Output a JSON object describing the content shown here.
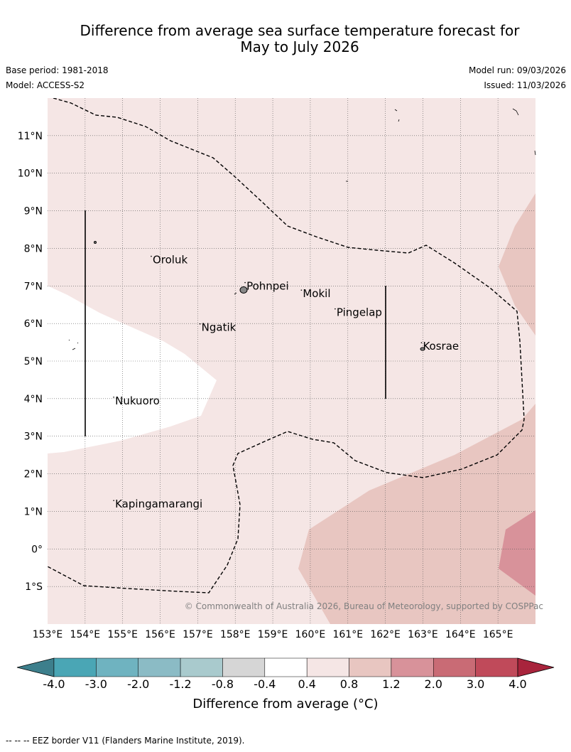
{
  "title_line1": "Difference from average sea surface temperature forecast for",
  "title_line2": "May to July 2026",
  "base_period": "Base period: 1981-2018",
  "model": "Model: ACCESS-S2",
  "model_run": "Model run: 09/03/2026",
  "issued": "Issued: 11/03/2026",
  "copyright": "© Commonwealth of Australia 2026, Bureau of Meteorology, supported by COSPPac",
  "lon_labels": [
    "153°E",
    "154°E",
    "155°E",
    "156°E",
    "157°E",
    "158°E",
    "159°E",
    "160°E",
    "161°E",
    "162°E",
    "163°E",
    "164°E",
    "165°E"
  ],
  "lat_labels": [
    "11°N",
    "10°N",
    "9°N",
    "8°N",
    "7°N",
    "6°N",
    "5°N",
    "4°N",
    "3°N",
    "2°N",
    "1°N",
    "0°",
    "1°S"
  ],
  "places": [
    {
      "name": "Oroluk",
      "lon": 155.8,
      "lat": 7.6
    },
    {
      "name": "Pohnpei",
      "lon": 158.3,
      "lat": 6.9
    },
    {
      "name": "Mokil",
      "lon": 159.8,
      "lat": 6.7
    },
    {
      "name": "Pingelap",
      "lon": 160.7,
      "lat": 6.2
    },
    {
      "name": "Ngatik",
      "lon": 157.1,
      "lat": 5.8
    },
    {
      "name": "Kosrae",
      "lon": 163.0,
      "lat": 5.3
    },
    {
      "name": "Nukuoro",
      "lon": 154.8,
      "lat": 3.85
    },
    {
      "name": "Kapingamarangi",
      "lon": 154.8,
      "lat": 1.1
    }
  ],
  "colorbar": {
    "ticks": [
      "-4.0",
      "-3.0",
      "-2.0",
      "-1.2",
      "-0.8",
      "-0.4",
      "0.4",
      "0.8",
      "1.2",
      "2.0",
      "3.0",
      "4.0"
    ],
    "colors": [
      "#3d7f8c",
      "#4aa6b5",
      "#6fb3c0",
      "#8bbbc5",
      "#a9cacd",
      "#d6d6d6",
      "#ffffff",
      "#f5e6e5",
      "#e8c6c1",
      "#d8929a",
      "#c96b75",
      "#c04a5a",
      "#a8243c"
    ],
    "label": "Difference from average (°C)"
  },
  "footnote": "--  --  -- EEZ border V11 (Flanders Marine Institute, 2019)."
}
